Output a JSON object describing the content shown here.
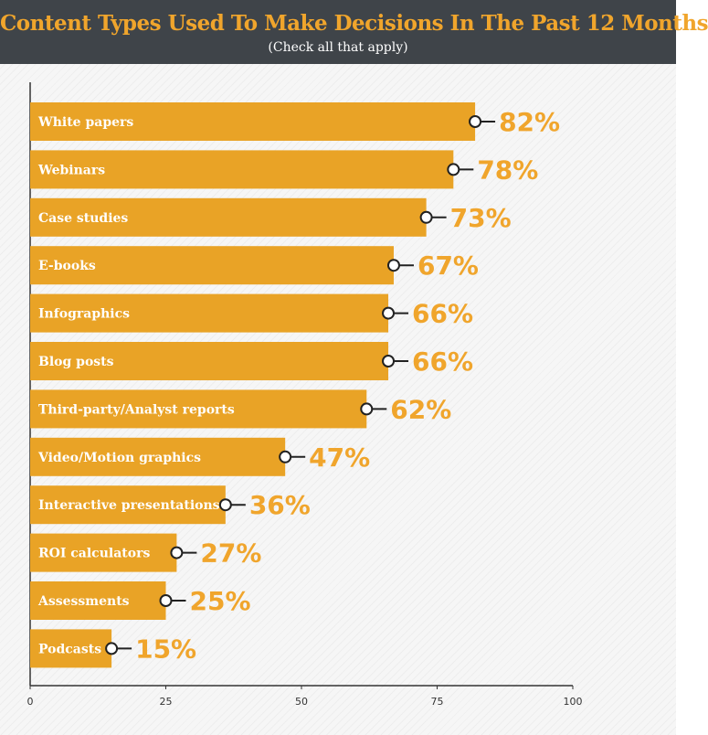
{
  "header": {
    "title": "Content Types Used To Make Decisions In The Past 12 Months",
    "subtitle": "(Check all that apply)"
  },
  "colors": {
    "bar": "#e9a326",
    "value_text": "#f0a52c",
    "header_bg": "#3f4449",
    "axis": "#333333"
  },
  "chart_data": {
    "type": "bar",
    "orientation": "horizontal",
    "categories": [
      "White papers",
      "Webinars",
      "Case studies",
      "E-books",
      "Infographics",
      "Blog posts",
      "Third-party/Analyst reports",
      "Video/Motion graphics",
      "Interactive presentations",
      "ROI calculators",
      "Assessments",
      "Podcasts"
    ],
    "values": [
      82,
      78,
      73,
      67,
      66,
      66,
      62,
      47,
      36,
      27,
      25,
      15
    ],
    "value_labels": [
      "82%",
      "78%",
      "73%",
      "67%",
      "66%",
      "66%",
      "62%",
      "47%",
      "36%",
      "27%",
      "25%",
      "15%"
    ],
    "x_ticks": [
      0,
      25,
      50,
      75,
      100
    ],
    "xlim": [
      0,
      100
    ],
    "grid": false,
    "legend": "none"
  }
}
